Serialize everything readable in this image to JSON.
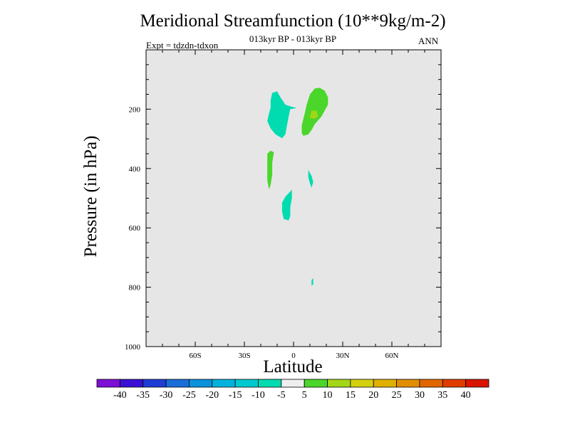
{
  "chart_data": {
    "type": "contour",
    "title": "Meridional Streamfunction (10**9kg/m-2)",
    "subtitle": "013kyr BP - 013kyr BP",
    "left_string": "Expt = tdzdn-tdxon",
    "right_string": "ANN",
    "xlabel": "Latitude",
    "ylabel": "Pressure (in hPa)",
    "xlim": [
      -90,
      90
    ],
    "ylim": [
      1000,
      0
    ],
    "x_ticks": [
      {
        "value": -60,
        "label": "60S"
      },
      {
        "value": -30,
        "label": "30S"
      },
      {
        "value": 0,
        "label": "0"
      },
      {
        "value": 30,
        "label": "30N"
      },
      {
        "value": 60,
        "label": "60N"
      }
    ],
    "y_ticks": [
      {
        "value": 200,
        "label": "200"
      },
      {
        "value": 400,
        "label": "400"
      },
      {
        "value": 600,
        "label": "600"
      },
      {
        "value": 800,
        "label": "800"
      },
      {
        "value": 1000,
        "label": "1000"
      }
    ],
    "background_color": "#e6e6e6",
    "colorbar": {
      "labels": [
        "-40",
        "-35",
        "-30",
        "-25",
        "-20",
        "-15",
        "-10",
        "-5",
        "5",
        "10",
        "15",
        "20",
        "25",
        "30",
        "35",
        "40"
      ],
      "colors": [
        "#7d0fd6",
        "#3b10d4",
        "#1f3cd4",
        "#1a6ed8",
        "#0c91db",
        "#00b2dd",
        "#00c9cf",
        "#00dbb0",
        "#eeeeee",
        "#4ad62a",
        "#a3d617",
        "#d4d00f",
        "#e0b000",
        "#e08d00",
        "#e06600",
        "#e03c00",
        "#d81500"
      ]
    },
    "regions": [
      {
        "name": "southern-upper-cell",
        "range": "-10 to -5",
        "color": "#00dbb0",
        "points": [
          [
            -13,
            145
          ],
          [
            -10,
            140
          ],
          [
            -8,
            160
          ],
          [
            -5,
            185
          ],
          [
            -1,
            192
          ],
          [
            2,
            196
          ],
          [
            -2,
            200
          ],
          [
            -3,
            225
          ],
          [
            -4,
            255
          ],
          [
            -5,
            285
          ],
          [
            -7,
            298
          ],
          [
            -11,
            285
          ],
          [
            -14,
            265
          ],
          [
            -16,
            240
          ],
          [
            -15,
            215
          ],
          [
            -14,
            195
          ],
          [
            -14,
            170
          ]
        ]
      },
      {
        "name": "northern-upper-cell",
        "range": "5 to 10",
        "color": "#4ad62a",
        "points": [
          [
            13,
            130
          ],
          [
            16,
            128
          ],
          [
            19,
            138
          ],
          [
            21,
            160
          ],
          [
            21,
            185
          ],
          [
            19,
            205
          ],
          [
            17,
            225
          ],
          [
            13,
            250
          ],
          [
            11,
            270
          ],
          [
            9,
            285
          ],
          [
            6,
            290
          ],
          [
            5,
            280
          ],
          [
            5,
            255
          ],
          [
            7,
            210
          ],
          [
            8,
            185
          ],
          [
            10,
            150
          ]
        ]
      },
      {
        "name": "northern-upper-core",
        "range": "10 to 15",
        "color": "#a3d617",
        "points": [
          [
            11,
            205
          ],
          [
            14,
            205
          ],
          [
            15,
            225
          ],
          [
            13,
            232
          ],
          [
            10,
            230
          ]
        ]
      },
      {
        "name": "southern-mid-cell",
        "range": "5 to 10",
        "color": "#4ad62a",
        "points": [
          [
            -14,
            340
          ],
          [
            -12,
            345
          ],
          [
            -13,
            380
          ],
          [
            -13,
            420
          ],
          [
            -14,
            455
          ],
          [
            -15,
            470
          ],
          [
            -16,
            440
          ],
          [
            -16,
            390
          ],
          [
            -16,
            350
          ]
        ]
      },
      {
        "name": "equatorial-mid-cell",
        "range": "-10 to -5",
        "color": "#00dbb0",
        "points": [
          [
            9,
            405
          ],
          [
            11,
            425
          ],
          [
            12,
            445
          ],
          [
            11,
            465
          ],
          [
            10,
            450
          ],
          [
            9,
            430
          ]
        ]
      },
      {
        "name": "lower-cell",
        "range": "-10 to -5",
        "color": "#00dbb0",
        "points": [
          [
            -1,
            472
          ],
          [
            -1,
            500
          ],
          [
            -2,
            530
          ],
          [
            -2,
            560
          ],
          [
            -3,
            575
          ],
          [
            -6,
            570
          ],
          [
            -7,
            545
          ],
          [
            -7,
            515
          ],
          [
            -5,
            495
          ]
        ]
      },
      {
        "name": "near-surface-cell",
        "range": "-10 to -5",
        "color": "#00dbb0",
        "points": [
          [
            12,
            770
          ],
          [
            12,
            790
          ],
          [
            11,
            795
          ],
          [
            11,
            775
          ]
        ]
      }
    ]
  }
}
